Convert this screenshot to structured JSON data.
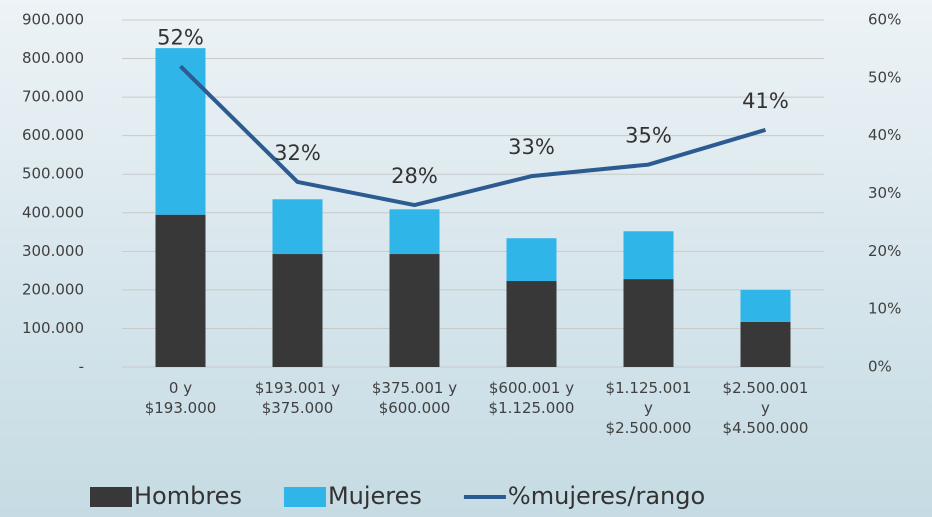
{
  "chart_data": {
    "type": "bar",
    "stacked": true,
    "categories": [
      "0 y\n$193.000",
      "$193.001 y\n$375.000",
      "$375.001 y\n$600.000",
      "$600.001 y\n$1.125.000",
      "$1.125.001\ny\n$2.500.000",
      "$2.500.001\ny\n$4.500.000"
    ],
    "series": [
      {
        "name": "Hombres",
        "color": "#383838",
        "values": [
          395000,
          293000,
          293000,
          223000,
          228000,
          117000
        ]
      },
      {
        "name": "Mujeres",
        "color": "#2fb5e8",
        "values": [
          432000,
          142000,
          116000,
          111000,
          124000,
          83000
        ]
      },
      {
        "name": "%mujeres/rango",
        "color": "#2b5b91",
        "type": "line",
        "axis": "y2",
        "values": [
          52,
          32,
          28,
          33,
          35,
          41
        ],
        "value_labels": [
          "52%",
          "32%",
          "28%",
          "33%",
          "35%",
          "41%"
        ]
      }
    ],
    "ylim": [
      0,
      900000
    ],
    "yticks": [
      {
        "value": 0,
        "label": "-"
      },
      {
        "value": 100000,
        "label": "100.000"
      },
      {
        "value": 200000,
        "label": "200.000"
      },
      {
        "value": 300000,
        "label": "300.000"
      },
      {
        "value": 400000,
        "label": "400.000"
      },
      {
        "value": 500000,
        "label": "500.000"
      },
      {
        "value": 600000,
        "label": "600.000"
      },
      {
        "value": 700000,
        "label": "700.000"
      },
      {
        "value": 800000,
        "label": "800.000"
      },
      {
        "value": 900000,
        "label": "900.000"
      }
    ],
    "y2lim": [
      0,
      60
    ],
    "y2ticks": [
      {
        "value": 0,
        "label": "0%"
      },
      {
        "value": 10,
        "label": "10%"
      },
      {
        "value": 20,
        "label": "20%"
      },
      {
        "value": 30,
        "label": "30%"
      },
      {
        "value": 40,
        "label": "40%"
      },
      {
        "value": 50,
        "label": "50%"
      },
      {
        "value": 60,
        "label": "60%"
      }
    ],
    "grid": true,
    "legend": "bottom"
  }
}
